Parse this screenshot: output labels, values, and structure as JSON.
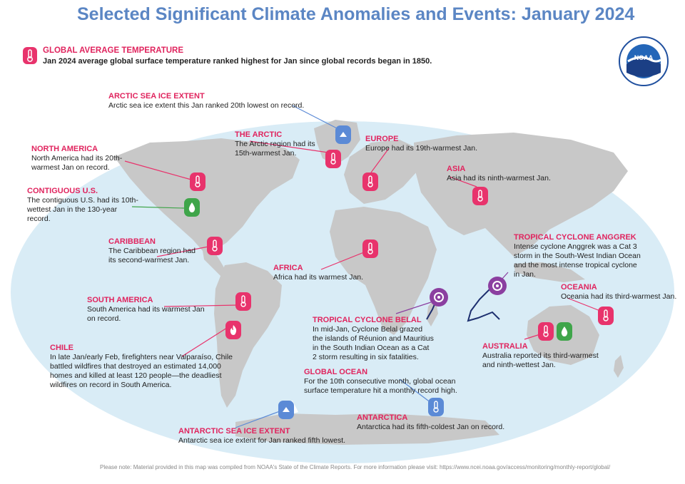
{
  "title": "Selected Significant Climate Anomalies and Events: January 2024",
  "global": {
    "heading": "GLOBAL AVERAGE TEMPERATURE",
    "text": "Jan 2024 average global surface temperature ranked highest for Jan since global records began in 1850."
  },
  "logo": {
    "text": "NOAA",
    "ring_text": "NATIONAL OCEANIC AND ATMOSPHERIC ADMINISTRATION · U.S. DEPARTMENT OF COMMERCE"
  },
  "colors": {
    "title": "#5b86c4",
    "heading": "#e0245e",
    "ocean": "#d9ecf6",
    "land": "#c8c8c8",
    "temp_icon": "#e8336c",
    "precip_icon": "#3fa54a",
    "ice_icon": "#5b8ad6",
    "cyclone": "#8b3fa0"
  },
  "labels": {
    "arctic_ice": {
      "h": "ARCTIC SEA ICE EXTENT",
      "t": "Arctic sea ice extent this Jan ranked 20th lowest on record."
    },
    "arctic": {
      "h": "THE ARCTIC",
      "t": "The Arctic region had its 15th-warmest Jan."
    },
    "europe": {
      "h": "EUROPE",
      "t": "Europe had its 19th-warmest Jan."
    },
    "north_america": {
      "h": "NORTH AMERICA",
      "t": "North America had its 20th-warmest Jan on record."
    },
    "contig_us": {
      "h": "CONTIGUOUS U.S.",
      "t": "The contiguous U.S. had its 10th-wettest Jan in the 130-year record."
    },
    "asia": {
      "h": "ASIA",
      "t": "Asia had its ninth-warmest Jan."
    },
    "caribbean": {
      "h": "CARIBBEAN",
      "t": "The Caribbean region had its second-warmest Jan."
    },
    "africa": {
      "h": "AFRICA",
      "t": "Africa had its warmest Jan."
    },
    "anggrek": {
      "h": "TROPICAL CYCLONE ANGGREK",
      "t": "Intense cyclone Anggrek was a Cat 3 storm in the South-West Indian Ocean and the most intense tropical cyclone in Jan."
    },
    "oceania": {
      "h": "OCEANIA",
      "t": "Oceania had its third-warmest Jan."
    },
    "south_america": {
      "h": "SOUTH AMERICA",
      "t": "South America had its warmest Jan on record."
    },
    "belal": {
      "h": "TROPICAL CYCLONE BELAL",
      "t": "In mid-Jan, Cyclone Belal grazed the islands of Réunion and Mauritius in the South Indian Ocean as a Cat 2 storm resulting in six fatalities."
    },
    "chile": {
      "h": "CHILE",
      "t": "In late Jan/early Feb, firefighters near Valparaíso, Chile battled wildfires that destroyed an estimated 14,000 homes and killed at least 120 people—the deadliest wildfires on record in South America."
    },
    "global_ocean": {
      "h": "GLOBAL OCEAN",
      "t": "For the 10th consecutive month, global ocean surface temperature hit a monthly record high."
    },
    "australia": {
      "h": "AUSTRALIA",
      "t": "Australia reported its third-warmest and ninth-wettest Jan."
    },
    "antarctica": {
      "h": "ANTARCTICA",
      "t": "Antarctica had its fifth-coldest Jan on record."
    },
    "antarctic_ice": {
      "h": "ANTARCTIC SEA ICE EXTENT",
      "t": "Antarctic sea ice extent for Jan ranked fifth lowest."
    }
  },
  "note": "Please note: Material provided in this map was compiled from NOAA's State of the Climate Reports. For more information please visit: https://www.ncei.noaa.gov/access/monitoring/monthly-report/global/"
}
